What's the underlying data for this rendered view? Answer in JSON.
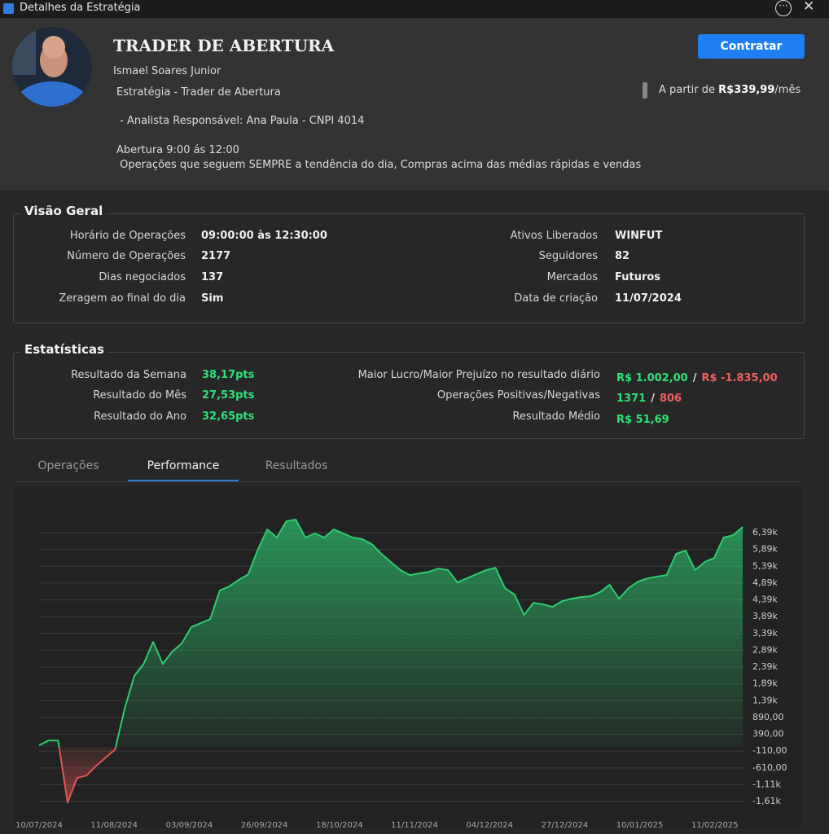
{
  "window": {
    "title": "Detalhes da Estratégia"
  },
  "header": {
    "name": "TRADER DE ABERTURA",
    "author": "Ismael Soares Junior",
    "lines": [
      "Estratégia - Trader de Abertura",
      " - Analista Responsável: Ana Paula - CNPI 4014",
      "Abertura 9:00 ás 12:00",
      " Operações que seguem SEMPRE a tendência do dia, Compras acima das médias rápidas e vendas"
    ],
    "button": "Contratar",
    "price_prefix": "A partir de",
    "price": "R$339,99",
    "price_suffix": "/mês"
  },
  "overview": {
    "title": "Visão Geral",
    "left": [
      [
        "Horário de Operações",
        "09:00:00 às 12:30:00"
      ],
      [
        "Número de Operações",
        "2177"
      ],
      [
        "Dias negociados",
        "137"
      ],
      [
        "Zeragem ao final do dia",
        "Sim"
      ]
    ],
    "right": [
      [
        "Ativos Liberados",
        "WINFUT"
      ],
      [
        "Seguidores",
        "82"
      ],
      [
        "Mercados",
        "Futuros"
      ],
      [
        "Data de criação",
        "11/07/2024"
      ]
    ]
  },
  "stats": {
    "title": "Estatísticas",
    "left": [
      [
        "Resultado da Semana",
        "38,17pts"
      ],
      [
        "Resultado do Mês",
        "27,53pts"
      ],
      [
        "Resultado do Ano",
        "32,65pts"
      ]
    ],
    "right": [
      {
        "label": "Maior Lucro/Maior Prejuízo no resultado diário",
        "values": [
          "R$ 1.002,00",
          "R$ -1.835,00"
        ],
        "separator": "/"
      },
      {
        "label": "Operações Positivas/Negativas",
        "values": [
          "1371",
          "806"
        ],
        "separator": "/"
      },
      {
        "label": "Resultado Médio",
        "values": [
          "R$ 51,69"
        ]
      }
    ]
  },
  "tabs": [
    "Operações",
    "Performance",
    "Resultados"
  ],
  "chart_data": {
    "type": "area",
    "color": "#2ecc71",
    "negative_color": "#e05555",
    "values": [
      62,
      206,
      206,
      -1637,
      -909,
      -837,
      -546,
      -303,
      -60,
      1152,
      2122,
      2486,
      3140,
      2486,
      2850,
      3092,
      3577,
      3698,
      3820,
      4668,
      4790,
      4984,
      5153,
      5881,
      6487,
      6245,
      6730,
      6778,
      6245,
      6366,
      6245,
      6487,
      6366,
      6245,
      6196,
      6050,
      5760,
      5517,
      5275,
      5129,
      5178,
      5226,
      5323,
      5275,
      4911,
      5032,
      5153,
      5275,
      5347,
      4741,
      4547,
      3941,
      4305,
      4256,
      4183,
      4353,
      4426,
      4474,
      4499,
      4620,
      4838,
      4426,
      4741,
      4935,
      5032,
      5081,
      5129,
      5760,
      5857,
      5275,
      5517,
      5638,
      6245,
      6317,
      6560
    ],
    "ylim": [
      -2190,
      7700
    ],
    "yticks": [
      {
        "value": 6390,
        "label": "6,39k"
      },
      {
        "value": 5890,
        "label": "5,89k"
      },
      {
        "value": 5390,
        "label": "5,39k"
      },
      {
        "value": 4890,
        "label": "4,89k"
      },
      {
        "value": 4390,
        "label": "4,39k"
      },
      {
        "value": 3890,
        "label": "3,89k"
      },
      {
        "value": 3390,
        "label": "3,39k"
      },
      {
        "value": 2890,
        "label": "2,89k"
      },
      {
        "value": 2390,
        "label": "2,39k"
      },
      {
        "value": 1890,
        "label": "1,89k"
      },
      {
        "value": 1390,
        "label": "1,39k"
      },
      {
        "value": 890,
        "label": "890,00"
      },
      {
        "value": 390,
        "label": "390,00"
      },
      {
        "value": -110,
        "label": "-110,00"
      },
      {
        "value": -610,
        "label": "-610,00"
      },
      {
        "value": -1110,
        "label": "-1,11k"
      },
      {
        "value": -1610,
        "label": "-1,61k"
      }
    ],
    "xtick_labels": [
      "10/07/2024",
      "11/08/2024",
      "03/09/2024",
      "26/09/2024",
      "18/10/2024",
      "11/11/2024",
      "04/12/2024",
      "27/12/2024",
      "10/01/2025",
      "11/02/2025"
    ],
    "grid": true
  }
}
